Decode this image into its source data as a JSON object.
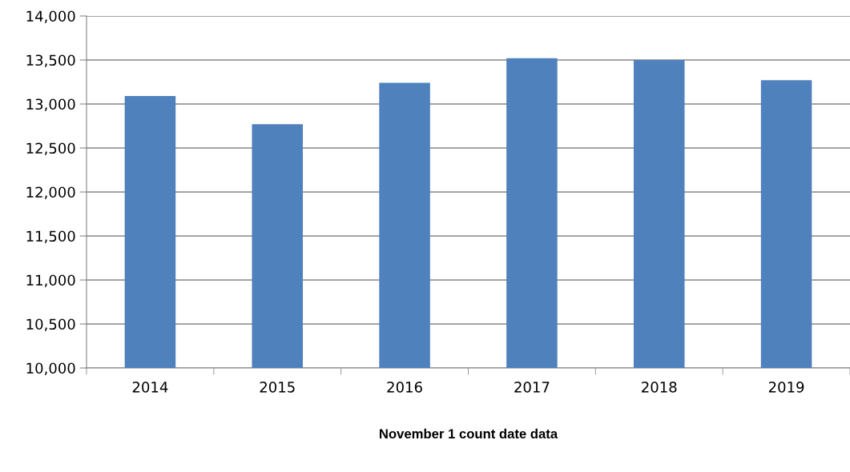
{
  "chart_data": {
    "type": "bar",
    "xlabel": "November 1 count date data",
    "categories": [
      "2014",
      "2015",
      "2016",
      "2017",
      "2018",
      "2019"
    ],
    "values": [
      13090,
      12770,
      13240,
      13520,
      13500,
      13270
    ],
    "color": "#4f81bd",
    "ylim": [
      10000,
      14000
    ],
    "yticks": [
      {
        "value": 10000,
        "label": "10,000"
      },
      {
        "value": 10500,
        "label": "10,500"
      },
      {
        "value": 11000,
        "label": "11,000"
      },
      {
        "value": 11500,
        "label": "11,500"
      },
      {
        "value": 12000,
        "label": "12,000"
      },
      {
        "value": 12500,
        "label": "12,500"
      },
      {
        "value": 13000,
        "label": "13,000"
      },
      {
        "value": 13500,
        "label": "13,500"
      },
      {
        "value": 14000,
        "label": "14,000"
      }
    ],
    "grid": "y",
    "legend": false
  }
}
